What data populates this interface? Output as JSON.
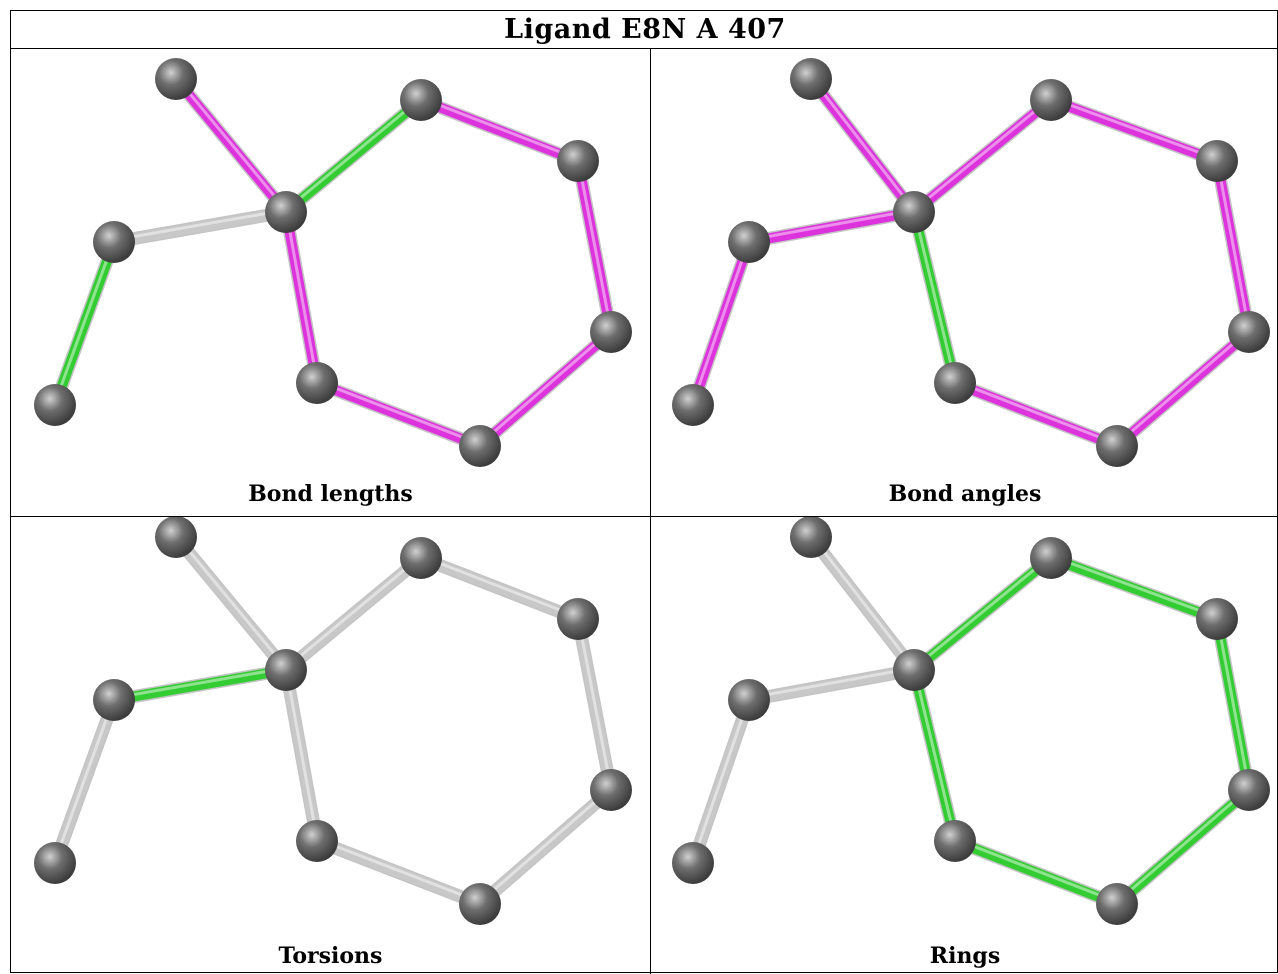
{
  "title": "Ligand E8N A 407",
  "colors": {
    "ok": "#33cc33",
    "outlier": "#dd33dd",
    "neutral": "#c8c8c8",
    "atom": "#6e6e6e"
  },
  "panels": [
    {
      "id": "bond-lengths",
      "label": "Bond lengths",
      "bond_colors": [
        "outlier",
        "ok",
        "neutral",
        "ok",
        "outlier",
        "outlier",
        "outlier",
        "outlier",
        "outlier",
        "outlier"
      ]
    },
    {
      "id": "bond-angles",
      "label": "Bond angles",
      "bond_colors": [
        "outlier",
        "outlier",
        "outlier",
        "outlier",
        "ok",
        "outlier",
        "outlier",
        "outlier",
        "outlier",
        "outlier"
      ]
    },
    {
      "id": "torsions",
      "label": "Torsions",
      "bond_colors": [
        "neutral",
        "neutral",
        "ok",
        "neutral",
        "neutral",
        "neutral",
        "neutral",
        "neutral",
        "neutral",
        "neutral"
      ]
    },
    {
      "id": "rings",
      "label": "Rings",
      "bond_colors": [
        "neutral",
        "ok",
        "neutral",
        "neutral",
        "ok",
        "ok",
        "ok",
        "ok",
        "ok",
        "ok"
      ]
    }
  ]
}
